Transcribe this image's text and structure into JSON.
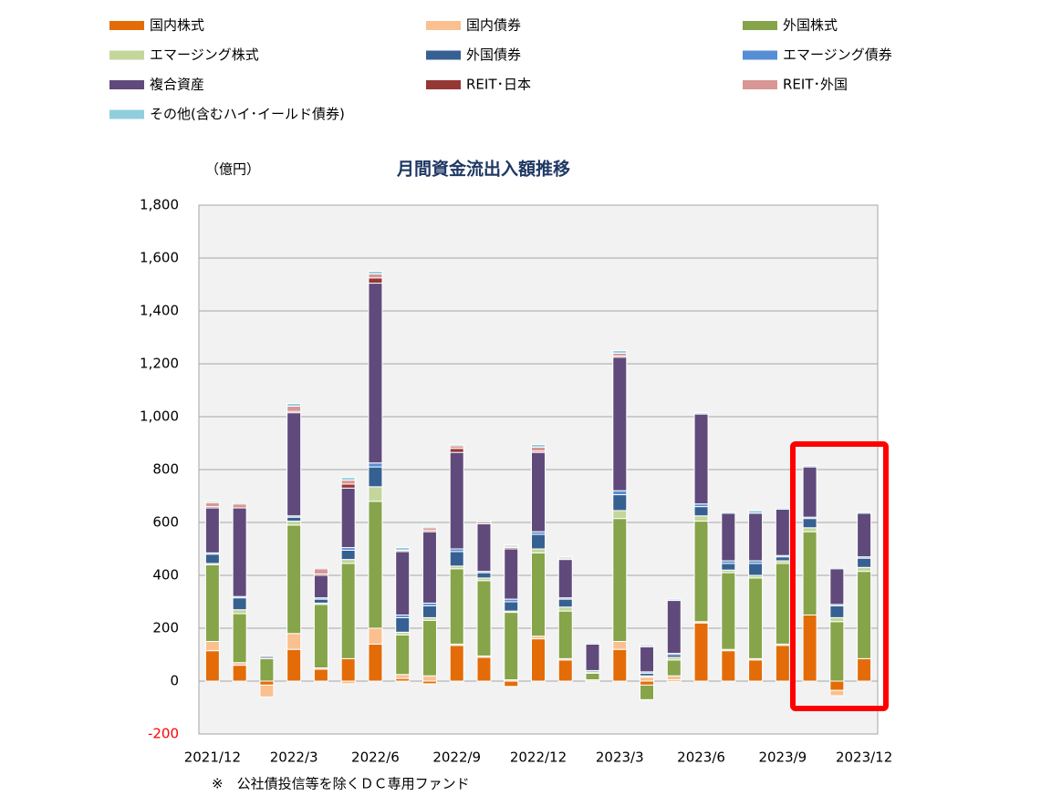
{
  "chart_data": {
    "type": "stacked_bar",
    "title": "月間資金流出入額推移",
    "y_axis_label": "（億円）",
    "footnote": "※　公社債投信等を除くＤＣ専用ファンド",
    "categories": [
      "2021/12",
      null,
      null,
      "2022/3",
      null,
      null,
      "2022/6",
      null,
      null,
      "2022/9",
      null,
      null,
      "2022/12",
      null,
      null,
      "2023/3",
      null,
      null,
      "2023/6",
      null,
      null,
      "2023/9",
      null,
      null,
      "2023/12"
    ],
    "ylim": [
      -200,
      1800
    ],
    "yticks": [
      {
        "value": -200,
        "label": "-200"
      },
      0,
      200,
      400,
      600,
      800,
      {
        "value": 1000,
        "label": "1,000"
      },
      {
        "value": 1200,
        "label": "1,200"
      },
      {
        "value": 1400,
        "label": "1,400"
      },
      {
        "value": 1600,
        "label": "1,600"
      },
      {
        "value": 1800,
        "label": "1,800"
      }
    ],
    "grid": true,
    "negative_tick_color": "#ff0000",
    "series": [
      {
        "name": "国内株式",
        "color": "#e36c09",
        "values": [
          115,
          60,
          -15,
          120,
          45,
          85,
          140,
          10,
          -10,
          135,
          90,
          -20,
          160,
          80,
          0,
          120,
          -15,
          5,
          220,
          115,
          80,
          135,
          250,
          -35,
          85
        ]
      },
      {
        "name": "国内債券",
        "color": "#fac090",
        "values": [
          35,
          10,
          -45,
          60,
          5,
          -10,
          60,
          15,
          20,
          5,
          5,
          5,
          10,
          5,
          5,
          30,
          15,
          15,
          5,
          5,
          5,
          5,
          0,
          -20,
          0
        ]
      },
      {
        "name": "外国株式",
        "color": "#86a44a",
        "values": [
          290,
          185,
          85,
          410,
          240,
          360,
          480,
          150,
          210,
          285,
          285,
          255,
          315,
          180,
          25,
          465,
          -55,
          60,
          380,
          290,
          305,
          305,
          315,
          225,
          330
        ]
      },
      {
        "name": "エマージング株式",
        "color": "#c3d69b",
        "values": [
          5,
          15,
          0,
          15,
          5,
          15,
          55,
          10,
          10,
          10,
          10,
          5,
          15,
          15,
          5,
          30,
          5,
          10,
          20,
          10,
          10,
          10,
          15,
          15,
          15
        ]
      },
      {
        "name": "外国債券",
        "color": "#376092",
        "values": [
          35,
          45,
          5,
          15,
          15,
          35,
          75,
          55,
          45,
          55,
          20,
          35,
          55,
          30,
          5,
          60,
          10,
          10,
          35,
          25,
          45,
          15,
          35,
          45,
          35
        ]
      },
      {
        "name": "エマージング債券",
        "color": "#558ed5",
        "values": [
          5,
          5,
          0,
          5,
          5,
          10,
          15,
          10,
          10,
          10,
          5,
          10,
          10,
          5,
          0,
          15,
          5,
          5,
          10,
          10,
          10,
          5,
          5,
          5,
          5
        ]
      },
      {
        "name": "複合資産",
        "color": "#604a7b",
        "values": [
          170,
          335,
          5,
          390,
          85,
          225,
          680,
          240,
          270,
          365,
          180,
          190,
          300,
          145,
          100,
          505,
          95,
          200,
          340,
          180,
          180,
          175,
          190,
          135,
          165
        ]
      },
      {
        "name": "REIT･日本",
        "color": "#953735",
        "values": [
          5,
          0,
          0,
          5,
          5,
          15,
          20,
          0,
          5,
          15,
          5,
          5,
          5,
          0,
          0,
          5,
          0,
          0,
          0,
          0,
          0,
          0,
          0,
          0,
          0
        ]
      },
      {
        "name": "REIT･外国",
        "color": "#d99694",
        "values": [
          15,
          15,
          0,
          20,
          20,
          15,
          15,
          5,
          10,
          10,
          5,
          5,
          15,
          5,
          0,
          10,
          5,
          0,
          0,
          0,
          0,
          0,
          0,
          0,
          0
        ]
      },
      {
        "name": "その他(含むハイ･イールド債券)",
        "color": "#92cddc",
        "values": [
          5,
          5,
          0,
          10,
          5,
          10,
          10,
          10,
          5,
          5,
          5,
          5,
          10,
          5,
          5,
          10,
          5,
          5,
          5,
          5,
          10,
          5,
          5,
          5,
          5
        ]
      }
    ]
  }
}
